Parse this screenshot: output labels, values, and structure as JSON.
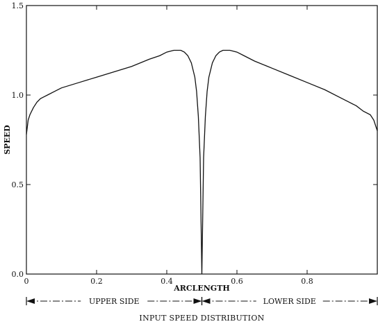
{
  "colors": {
    "ink": "#111111",
    "background": "#ffffff"
  },
  "chart_data": {
    "type": "line",
    "title": "",
    "caption": "INPUT SPEED DISTRIBUTION",
    "xlabel": "ARCLENGTH",
    "ylabel": "SPEED",
    "xlim": [
      0,
      1.0
    ],
    "ylim": [
      0,
      1.5
    ],
    "grid": false,
    "x_ticks": [
      0,
      0.2,
      0.4,
      0.6,
      0.8
    ],
    "x_tick_labels": [
      "0",
      "0.2",
      "0.4",
      "0.6",
      "0.8"
    ],
    "y_ticks": [
      0,
      0.5,
      1.0,
      1.5
    ],
    "y_tick_labels": [
      "0.0",
      "0.5",
      "1.0",
      "1.5"
    ],
    "spans": [
      {
        "label": "UPPER SIDE",
        "from": 0,
        "to": 0.5
      },
      {
        "label": "LOWER SIDE",
        "from": 0.5,
        "to": 1.0
      }
    ],
    "series": [
      {
        "x": [
          0.0,
          0.005,
          0.01,
          0.02,
          0.03,
          0.04,
          0.05,
          0.06,
          0.08,
          0.1,
          0.15,
          0.2,
          0.25,
          0.3,
          0.35,
          0.38,
          0.4,
          0.42,
          0.43,
          0.44,
          0.45,
          0.46,
          0.47,
          0.48,
          0.485,
          0.49,
          0.495,
          0.5,
          0.505,
          0.51,
          0.515,
          0.52,
          0.53,
          0.54,
          0.55,
          0.56,
          0.57,
          0.58,
          0.6,
          0.62,
          0.65,
          0.7,
          0.75,
          0.8,
          0.85,
          0.9,
          0.92,
          0.94,
          0.96,
          0.98,
          0.99,
          1.0
        ],
        "y": [
          0.78,
          0.86,
          0.89,
          0.93,
          0.96,
          0.98,
          0.99,
          1.0,
          1.02,
          1.04,
          1.07,
          1.1,
          1.13,
          1.16,
          1.2,
          1.22,
          1.24,
          1.25,
          1.25,
          1.25,
          1.24,
          1.22,
          1.18,
          1.1,
          1.02,
          0.88,
          0.65,
          0.0,
          0.65,
          0.88,
          1.02,
          1.1,
          1.18,
          1.22,
          1.24,
          1.25,
          1.25,
          1.25,
          1.24,
          1.22,
          1.19,
          1.15,
          1.11,
          1.07,
          1.03,
          0.98,
          0.96,
          0.94,
          0.91,
          0.89,
          0.86,
          0.8
        ]
      }
    ]
  }
}
